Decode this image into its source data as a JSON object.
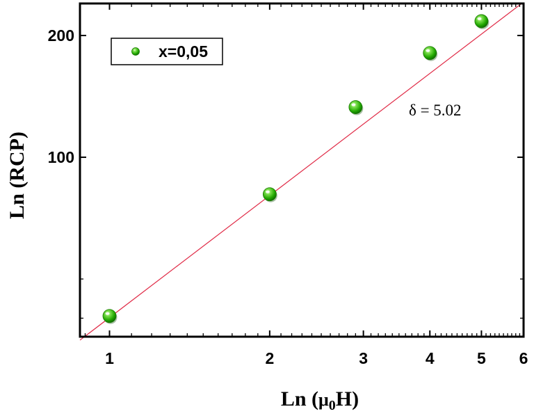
{
  "chart_data": {
    "type": "scatter",
    "xlabel_main": "Ln (",
    "xlabel_mu": "μ",
    "xlabel_sub": "0",
    "xlabel_tail": "H)",
    "ylabel": "Ln (RCP)",
    "xscale": "log",
    "yscale": "log",
    "xlim": [
      0.88,
      6.0
    ],
    "ylim": [
      36,
      240
    ],
    "x_ticks": [
      {
        "value": 1,
        "label": "1"
      },
      {
        "value": 2,
        "label": "2"
      },
      {
        "value": 3,
        "label": "3"
      },
      {
        "value": 4,
        "label": "4"
      },
      {
        "value": 5,
        "label": "5"
      },
      {
        "value": 6,
        "label": "6"
      }
    ],
    "y_ticks": [
      {
        "value": 100,
        "label": "100"
      },
      {
        "value": 200,
        "label": "200"
      }
    ],
    "series": [
      {
        "name": "x=0,05",
        "color": "#22bb00",
        "x": [
          1.0,
          2.0,
          2.9,
          4.0,
          5.0
        ],
        "y": [
          40.5,
          81,
          133,
          181,
          217
        ]
      }
    ],
    "fit_line": {
      "color": "#e02a46",
      "x": [
        0.88,
        6.0
      ],
      "y": [
        35.3,
        242
      ]
    },
    "legend_position": "top-left",
    "annotation": "δ = 5.02",
    "grid": false
  }
}
